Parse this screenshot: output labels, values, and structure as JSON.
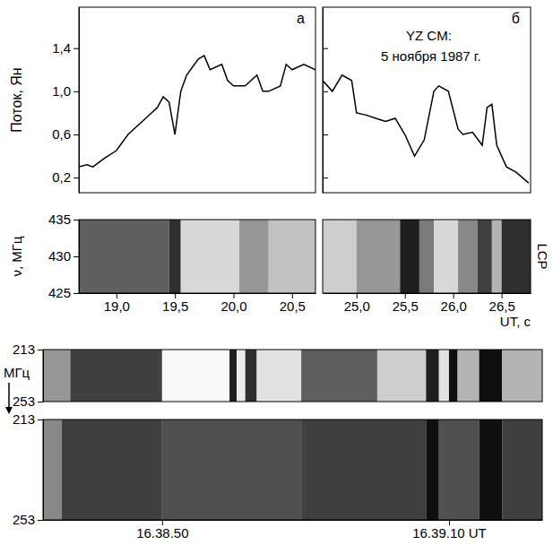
{
  "chart_data": [
    {
      "type": "line",
      "title": "а",
      "y_label": "Поток, Ян",
      "x": [
        18.68,
        18.75,
        18.8,
        18.9,
        19.0,
        19.1,
        19.2,
        19.3,
        19.35,
        19.4,
        19.45,
        19.5,
        19.55,
        19.6,
        19.7,
        19.75,
        19.8,
        19.9,
        19.95,
        20.0,
        20.1,
        20.2,
        20.25,
        20.3,
        20.4,
        20.45,
        20.5,
        20.6,
        20.7
      ],
      "series": [
        {
          "color": "#000000",
          "values": [
            0.3,
            0.32,
            0.3,
            0.38,
            0.45,
            0.6,
            0.7,
            0.8,
            0.85,
            0.95,
            0.9,
            0.6,
            1.0,
            1.15,
            1.3,
            1.33,
            1.2,
            1.25,
            1.1,
            1.05,
            1.05,
            1.15,
            1.0,
            1.0,
            1.05,
            1.25,
            1.2,
            1.25,
            1.2
          ]
        }
      ],
      "xlim": [
        18.68,
        20.7
      ],
      "ylim": [
        0.06,
        1.78
      ],
      "yticks": [
        {
          "value": 0.2,
          "label": "0,2"
        },
        {
          "value": 0.6,
          "label": "0,6"
        },
        {
          "value": 1.0,
          "label": "1,0"
        },
        {
          "value": 1.4,
          "label": "1,4"
        }
      ]
    },
    {
      "type": "line",
      "title": "б",
      "annotations": [
        "YZ CM:",
        "5 ноября 1987 г."
      ],
      "x": [
        24.65,
        24.75,
        24.85,
        24.95,
        25.0,
        25.1,
        25.2,
        25.3,
        25.4,
        25.5,
        25.6,
        25.7,
        25.8,
        25.85,
        25.95,
        26.05,
        26.1,
        26.2,
        26.3,
        26.35,
        26.4,
        26.45,
        26.55,
        26.65,
        26.78
      ],
      "series": [
        {
          "color": "#000000",
          "values": [
            1.1,
            1.0,
            1.15,
            1.1,
            0.8,
            0.78,
            0.75,
            0.72,
            0.75,
            0.6,
            0.4,
            0.55,
            1.0,
            1.05,
            1.0,
            0.65,
            0.6,
            0.62,
            0.5,
            0.85,
            0.88,
            0.5,
            0.3,
            0.25,
            0.15
          ]
        }
      ],
      "xlim": [
        24.65,
        26.8
      ],
      "ylim": [
        0.06,
        1.78
      ],
      "yticks": [
        0.2,
        0.6,
        1.0,
        1.4
      ],
      "tick_labels": false
    },
    {
      "type": "heatmap",
      "y_label": "ν, МГц",
      "bins": [
        18.68,
        19.45,
        19.55,
        20.05,
        20.3,
        20.7
      ],
      "intensity": [
        0.3,
        0.15,
        0.75,
        0.5,
        0.65
      ],
      "xlim": [
        18.68,
        20.7
      ],
      "ylim": [
        425,
        435
      ],
      "yticks": [
        425,
        430,
        435
      ],
      "xticks": [
        {
          "value": 19.0,
          "label": "19,0"
        },
        {
          "value": 19.5,
          "label": "19,5"
        },
        {
          "value": 20.0,
          "label": "20,0"
        },
        {
          "value": 20.5,
          "label": "20,5"
        }
      ]
    },
    {
      "type": "heatmap",
      "annotations": [
        "LCP"
      ],
      "x_label": "UT, с",
      "bins": [
        24.65,
        25.0,
        25.45,
        25.65,
        25.8,
        26.05,
        26.25,
        26.4,
        26.5,
        26.8
      ],
      "intensity": [
        0.7,
        0.5,
        0.1,
        0.4,
        0.75,
        0.45,
        0.2,
        0.6,
        0.15
      ],
      "xlim": [
        24.65,
        26.8
      ],
      "xticks": [
        {
          "value": 25.0,
          "label": "25,0"
        },
        {
          "value": 25.5,
          "label": "25,5"
        },
        {
          "value": 26.0,
          "label": "26,0"
        },
        {
          "value": 26.5,
          "label": "26,5"
        }
      ]
    },
    {
      "type": "heatmap",
      "y_label": "МГц",
      "series": [
        {
          "bins": [
            41.7,
            43.6,
            50.0,
            54.7,
            55.2,
            55.8,
            56.6,
            59.7,
            65.0,
            68.4,
            69.3,
            70.0,
            70.6,
            72.1,
            73.7,
            76.5
          ],
          "intensity": [
            0.5,
            0.2,
            0.95,
            0.1,
            0.85,
            0.15,
            0.8,
            0.3,
            0.7,
            0.1,
            0.8,
            0.05,
            0.6,
            0.05,
            0.6
          ]
        },
        {
          "bins": [
            41.7,
            43.0,
            50.0,
            59.7,
            68.4,
            69.3,
            72.1,
            73.7,
            76.5
          ],
          "intensity": [
            0.45,
            0.2,
            0.25,
            0.2,
            0.05,
            0.25,
            0.05,
            0.2
          ]
        }
      ],
      "xlim": [
        41.7,
        76.5
      ],
      "ylim": [
        213,
        253
      ],
      "yticks": [
        213,
        253
      ],
      "xticks": [
        {
          "value": 50,
          "label": "16.38.50"
        },
        {
          "value": 70,
          "label": "16.39.10 UT"
        }
      ]
    }
  ]
}
